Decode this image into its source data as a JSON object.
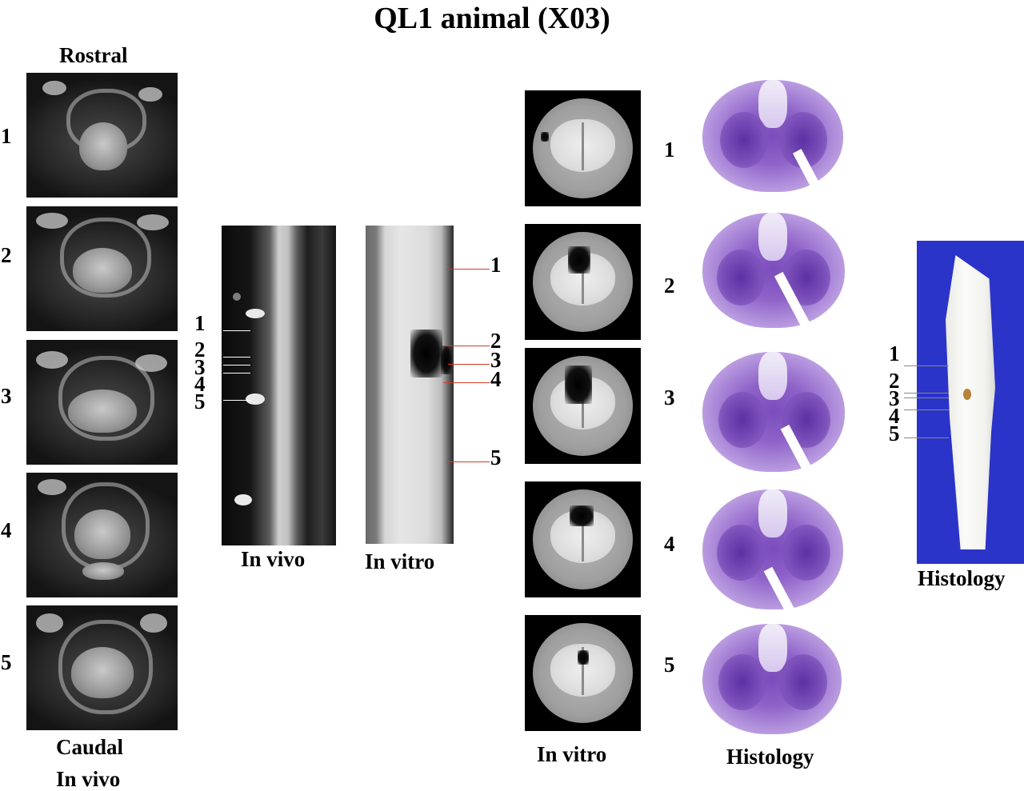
{
  "title": "QL1 animal (X03)",
  "left_column": {
    "top_label": "Rostral",
    "bottom_label": "Caudal",
    "modality_label": "In vivo",
    "slice_numbers": [
      "1",
      "2",
      "3",
      "4",
      "5"
    ]
  },
  "sagittal_in_vivo": {
    "label": "In vivo",
    "markers": [
      "1",
      "2",
      "3",
      "4",
      "5"
    ]
  },
  "sagittal_in_vitro": {
    "label": "In vitro",
    "markers": [
      "1",
      "2",
      "3",
      "4",
      "5"
    ]
  },
  "ct_column": {
    "label": "In vitro"
  },
  "histology_column": {
    "label": "Histology",
    "slice_numbers": [
      "1",
      "2",
      "3",
      "4",
      "5"
    ]
  },
  "specimen_photo": {
    "label": "Histology",
    "markers": [
      "1",
      "2",
      "3",
      "4",
      "5"
    ]
  },
  "colors": {
    "marker_line_in_vitro": "#d23a2a",
    "marker_line_white": "#ffffff",
    "histology_stain": "#7b4dbc",
    "photo_background": "#2b34c8"
  }
}
